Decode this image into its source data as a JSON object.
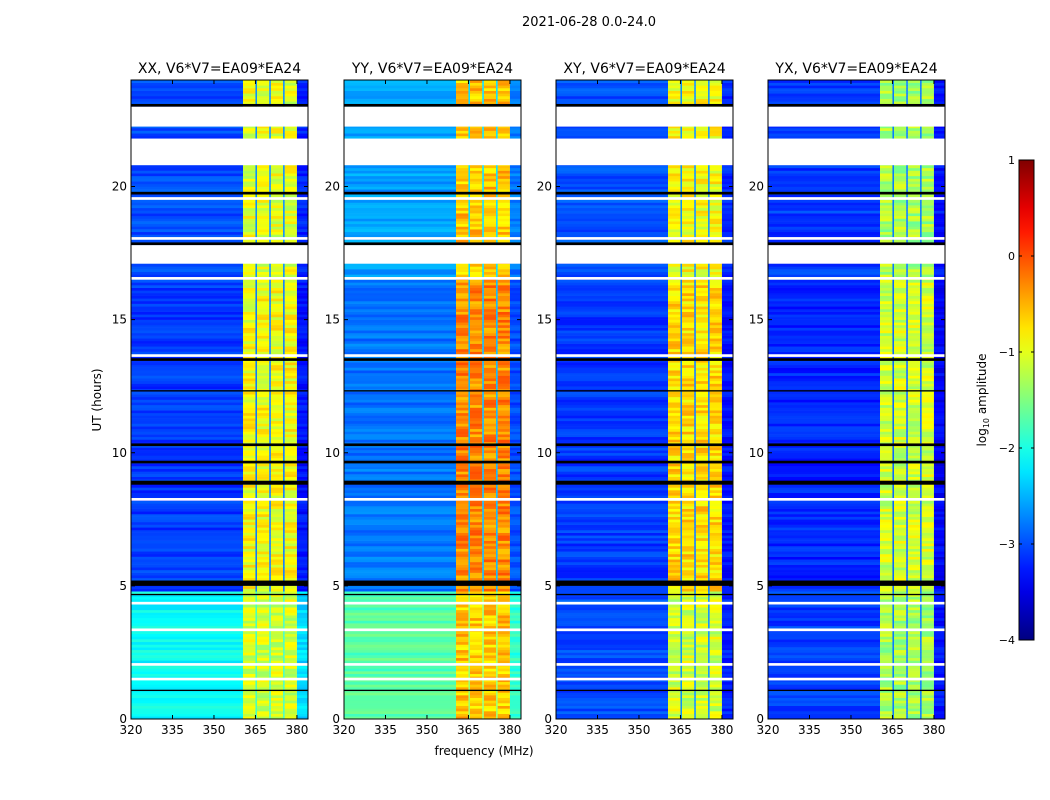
{
  "chart_data": {
    "type": "heatmap",
    "title": "2021-06-28 0.0-24.0",
    "xlabel": "frequency (MHz)",
    "ylabel": "UT (hours)",
    "xlim": [
      320,
      384
    ],
    "ylim": [
      0,
      24
    ],
    "xticks": [
      "320",
      "335",
      "350",
      "365",
      "380"
    ],
    "xtick_values": [
      320,
      335,
      350,
      365,
      380
    ],
    "yticks": [
      "0",
      "5",
      "10",
      "15",
      "20"
    ],
    "ytick_values": [
      0,
      5,
      10,
      15,
      20
    ],
    "band_mhz": [
      360.5,
      380
    ],
    "band_gaps_mhz": [
      365,
      370,
      375
    ],
    "flagged_hours": [
      [
        22.25,
        23.0
      ],
      [
        20.8,
        21.8
      ],
      [
        17.1,
        17.8
      ],
      [
        19.5,
        19.6
      ],
      [
        18.0,
        18.1
      ],
      [
        16.5,
        16.6
      ],
      [
        13.6,
        13.7
      ],
      [
        8.2,
        8.3
      ],
      [
        4.3,
        4.4
      ],
      [
        3.3,
        3.4
      ],
      [
        2.0,
        2.1
      ],
      [
        1.45,
        1.55
      ]
    ],
    "dark_hours": [
      [
        23.0,
        23.1
      ],
      [
        19.7,
        19.8
      ],
      [
        17.8,
        17.9
      ],
      [
        13.45,
        13.55
      ],
      [
        12.3,
        12.35
      ],
      [
        10.25,
        10.35
      ],
      [
        9.6,
        9.7
      ],
      [
        8.8,
        8.95
      ],
      [
        5.0,
        5.2
      ],
      [
        4.65,
        4.7
      ],
      [
        1.05,
        1.1
      ]
    ],
    "panels": [
      {
        "title": "XX, V6*V7=EA09*EA24",
        "segments": [
          {
            "hours": [
              0,
              4.7
            ],
            "background": -2.1,
            "band": -1.1
          },
          {
            "hours": [
              4.7,
              16.5
            ],
            "background": -3.1,
            "band": -0.9
          },
          {
            "hours": [
              16.5,
              24
            ],
            "background": -3.0,
            "band": -1.0
          }
        ]
      },
      {
        "title": "YY, V6*V7=EA09*EA24",
        "segments": [
          {
            "hours": [
              0,
              4.7
            ],
            "background": -1.7,
            "band": -0.6
          },
          {
            "hours": [
              4.7,
              16.5
            ],
            "background": -2.8,
            "band": -0.3
          },
          {
            "hours": [
              16.5,
              24
            ],
            "background": -2.6,
            "band": -0.6
          }
        ]
      },
      {
        "title": "XY, V6*V7=EA09*EA24",
        "segments": [
          {
            "hours": [
              0,
              4.7
            ],
            "background": -3.0,
            "band": -1.1
          },
          {
            "hours": [
              4.7,
              16.5
            ],
            "background": -3.1,
            "band": -0.7
          },
          {
            "hours": [
              16.5,
              24
            ],
            "background": -3.0,
            "band": -0.9
          }
        ]
      },
      {
        "title": "YX, V6*V7=EA09*EA24",
        "segments": [
          {
            "hours": [
              0,
              4.7
            ],
            "background": -3.1,
            "band": -1.3
          },
          {
            "hours": [
              4.7,
              16.5
            ],
            "background": -3.2,
            "band": -1.1
          },
          {
            "hours": [
              16.5,
              24
            ],
            "background": -3.1,
            "band": -1.3
          }
        ]
      }
    ],
    "colorbar": {
      "label_main": "log",
      "label_sub": "10",
      "label_rest": " amplitude",
      "range": [
        -4,
        1
      ],
      "ticks": [
        "−4",
        "−3",
        "−2",
        "−1",
        "0",
        "1"
      ],
      "tick_values": [
        -4,
        -3,
        -2,
        -1,
        0,
        1
      ],
      "colormap": "jet"
    }
  }
}
